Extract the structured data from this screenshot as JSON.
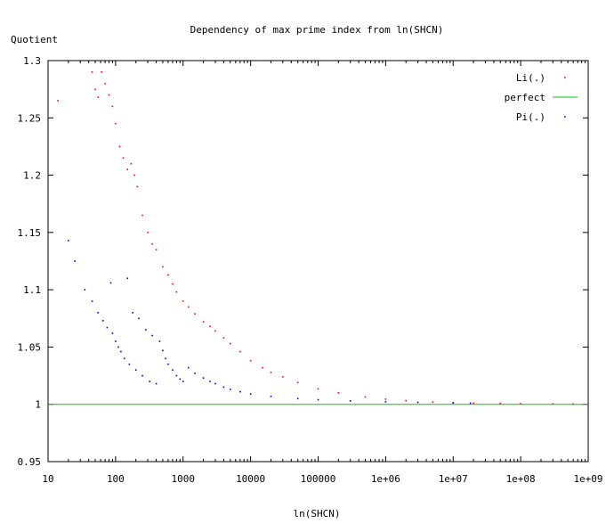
{
  "chart_data": {
    "type": "scatter",
    "title": "Dependency of max prime index from ln(SHCN)",
    "xlabel": "ln(SHCN)",
    "ylabel": "Quotient",
    "xscale": "log",
    "xlim": [
      10,
      1000000000
    ],
    "ylim": [
      0.95,
      1.3
    ],
    "x_ticks": [
      10,
      100,
      1000,
      10000,
      100000,
      1000000,
      10000000,
      100000000,
      1000000000
    ],
    "x_tick_labels": [
      "10",
      "100",
      "1000",
      "10000",
      "100000",
      "1e+06",
      "1e+07",
      "1e+08",
      "1e+09"
    ],
    "y_ticks": [
      0.95,
      1,
      1.05,
      1.1,
      1.15,
      1.2,
      1.25,
      1.3
    ],
    "y_tick_labels": [
      "0.95",
      "1",
      "1.05",
      "1.1",
      "1.15",
      "1.2",
      "1.25",
      "1.3"
    ],
    "grid": false,
    "legend_position": "top-right",
    "series": [
      {
        "name": "Li(.)",
        "color": "#ff0000",
        "style": "points",
        "points": [
          [
            14,
            1.265
          ],
          [
            45,
            1.29
          ],
          [
            50,
            1.275
          ],
          [
            55,
            1.268
          ],
          [
            62,
            1.29
          ],
          [
            70,
            1.28
          ],
          [
            80,
            1.27
          ],
          [
            90,
            1.26
          ],
          [
            100,
            1.245
          ],
          [
            115,
            1.225
          ],
          [
            130,
            1.215
          ],
          [
            150,
            1.205
          ],
          [
            170,
            1.21
          ],
          [
            190,
            1.2
          ],
          [
            210,
            1.19
          ],
          [
            250,
            1.165
          ],
          [
            300,
            1.15
          ],
          [
            350,
            1.14
          ],
          [
            400,
            1.135
          ],
          [
            500,
            1.12
          ],
          [
            600,
            1.113
          ],
          [
            700,
            1.105
          ],
          [
            800,
            1.098
          ],
          [
            1000,
            1.09
          ],
          [
            1200,
            1.085
          ],
          [
            1500,
            1.079
          ],
          [
            2000,
            1.072
          ],
          [
            2500,
            1.068
          ],
          [
            3000,
            1.064
          ],
          [
            4000,
            1.058
          ],
          [
            5000,
            1.053
          ],
          [
            7000,
            1.046
          ],
          [
            10000,
            1.038
          ],
          [
            15000,
            1.032
          ],
          [
            20000,
            1.028
          ],
          [
            30000,
            1.024
          ],
          [
            50000,
            1.019
          ],
          [
            100000,
            1.0135
          ],
          [
            200000,
            1.01
          ],
          [
            500000,
            1.0065
          ],
          [
            1000000,
            1.0045
          ],
          [
            2000000,
            1.0032
          ],
          [
            5000000,
            1.002
          ],
          [
            10000000,
            1.0015
          ],
          [
            20000000,
            1.001
          ],
          [
            50000000,
            1.0008
          ],
          [
            100000000,
            1.0006
          ],
          [
            300000000,
            1.0004
          ],
          [
            600000000,
            1.0003
          ]
        ]
      },
      {
        "name": "perfect",
        "color": "#00cc00",
        "style": "line",
        "points": [
          [
            10,
            1
          ],
          [
            1000000000,
            1
          ]
        ]
      },
      {
        "name": "Pi(.)",
        "color": "#0000cc",
        "style": "points",
        "points": [
          [
            20,
            1.143
          ],
          [
            25,
            1.125
          ],
          [
            35,
            1.1
          ],
          [
            45,
            1.09
          ],
          [
            55,
            1.08
          ],
          [
            65,
            1.073
          ],
          [
            75,
            1.067
          ],
          [
            85,
            1.106
          ],
          [
            90,
            1.062
          ],
          [
            100,
            1.055
          ],
          [
            110,
            1.05
          ],
          [
            120,
            1.046
          ],
          [
            135,
            1.04
          ],
          [
            150,
            1.11
          ],
          [
            160,
            1.035
          ],
          [
            180,
            1.08
          ],
          [
            200,
            1.03
          ],
          [
            220,
            1.075
          ],
          [
            250,
            1.025
          ],
          [
            280,
            1.065
          ],
          [
            320,
            1.02
          ],
          [
            350,
            1.06
          ],
          [
            400,
            1.018
          ],
          [
            450,
            1.055
          ],
          [
            500,
            1.047
          ],
          [
            550,
            1.04
          ],
          [
            600,
            1.035
          ],
          [
            700,
            1.03
          ],
          [
            800,
            1.025
          ],
          [
            900,
            1.022
          ],
          [
            1000,
            1.02
          ],
          [
            1200,
            1.032
          ],
          [
            1500,
            1.027
          ],
          [
            2000,
            1.023
          ],
          [
            2500,
            1.02
          ],
          [
            3000,
            1.018
          ],
          [
            4000,
            1.015
          ],
          [
            5000,
            1.013
          ],
          [
            7000,
            1.011
          ],
          [
            10000,
            1.009
          ],
          [
            20000,
            1.007
          ],
          [
            50000,
            1.005
          ],
          [
            100000,
            1.004
          ],
          [
            300000,
            1.003
          ],
          [
            1000000,
            1.0022
          ],
          [
            3000000,
            1.0017
          ],
          [
            10000000,
            1.0012
          ],
          [
            18000000,
            1.001
          ]
        ]
      }
    ]
  }
}
